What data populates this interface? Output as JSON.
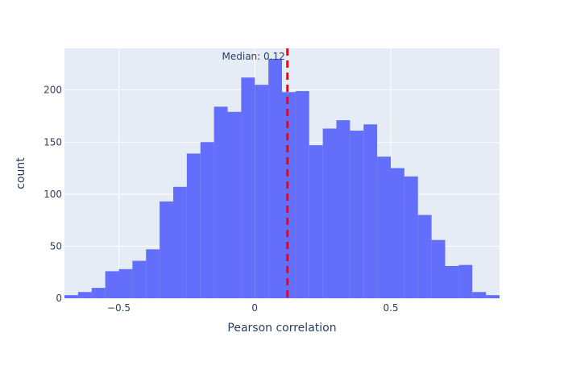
{
  "chart_data": {
    "type": "bar",
    "title": "",
    "xlabel": "Pearson correlation",
    "ylabel": "count",
    "bin_width": 0.05,
    "bins": [
      {
        "x0": -0.7,
        "x1": -0.65,
        "value": 3
      },
      {
        "x0": -0.65,
        "x1": -0.6,
        "value": 6
      },
      {
        "x0": -0.6,
        "x1": -0.55,
        "value": 10
      },
      {
        "x0": -0.55,
        "x1": -0.5,
        "value": 26
      },
      {
        "x0": -0.5,
        "x1": -0.45,
        "value": 28
      },
      {
        "x0": -0.45,
        "x1": -0.4,
        "value": 36
      },
      {
        "x0": -0.4,
        "x1": -0.35,
        "value": 47
      },
      {
        "x0": -0.35,
        "x1": -0.3,
        "value": 93
      },
      {
        "x0": -0.3,
        "x1": -0.25,
        "value": 107
      },
      {
        "x0": -0.25,
        "x1": -0.2,
        "value": 139
      },
      {
        "x0": -0.2,
        "x1": -0.15,
        "value": 150
      },
      {
        "x0": -0.15,
        "x1": -0.1,
        "value": 184
      },
      {
        "x0": -0.1,
        "x1": -0.05,
        "value": 179
      },
      {
        "x0": -0.05,
        "x1": 0.0,
        "value": 212
      },
      {
        "x0": 0.0,
        "x1": 0.05,
        "value": 205
      },
      {
        "x0": 0.05,
        "x1": 0.1,
        "value": 230
      },
      {
        "x0": 0.1,
        "x1": 0.15,
        "value": 198
      },
      {
        "x0": 0.15,
        "x1": 0.2,
        "value": 199
      },
      {
        "x0": 0.2,
        "x1": 0.25,
        "value": 147
      },
      {
        "x0": 0.25,
        "x1": 0.3,
        "value": 163
      },
      {
        "x0": 0.3,
        "x1": 0.35,
        "value": 171
      },
      {
        "x0": 0.35,
        "x1": 0.4,
        "value": 161
      },
      {
        "x0": 0.4,
        "x1": 0.45,
        "value": 167
      },
      {
        "x0": 0.45,
        "x1": 0.5,
        "value": 136
      },
      {
        "x0": 0.5,
        "x1": 0.55,
        "value": 125
      },
      {
        "x0": 0.55,
        "x1": 0.6,
        "value": 117
      },
      {
        "x0": 0.6,
        "x1": 0.65,
        "value": 80
      },
      {
        "x0": 0.65,
        "x1": 0.7,
        "value": 56
      },
      {
        "x0": 0.7,
        "x1": 0.75,
        "value": 31
      },
      {
        "x0": 0.75,
        "x1": 0.8,
        "value": 32
      },
      {
        "x0": 0.8,
        "x1": 0.85,
        "value": 6
      },
      {
        "x0": 0.85,
        "x1": 0.9,
        "value": 3
      }
    ],
    "xlim": [
      -0.7,
      0.9
    ],
    "ylim": [
      0,
      240
    ],
    "xticks": [
      {
        "value": -0.5,
        "label": "−0.5"
      },
      {
        "value": 0,
        "label": "0"
      },
      {
        "value": 0.5,
        "label": "0.5"
      }
    ],
    "yticks": [
      {
        "value": 0,
        "label": "0"
      },
      {
        "value": 50,
        "label": "50"
      },
      {
        "value": 100,
        "label": "100"
      },
      {
        "value": 150,
        "label": "150"
      },
      {
        "value": 200,
        "label": "200"
      }
    ],
    "grid": true,
    "bar_color": "#636efa",
    "plot_bg": "#e5ecf6",
    "median_line": {
      "value": 0.12,
      "label": "Median: 0.12",
      "color": "#ff0000",
      "style": "dashed"
    }
  }
}
